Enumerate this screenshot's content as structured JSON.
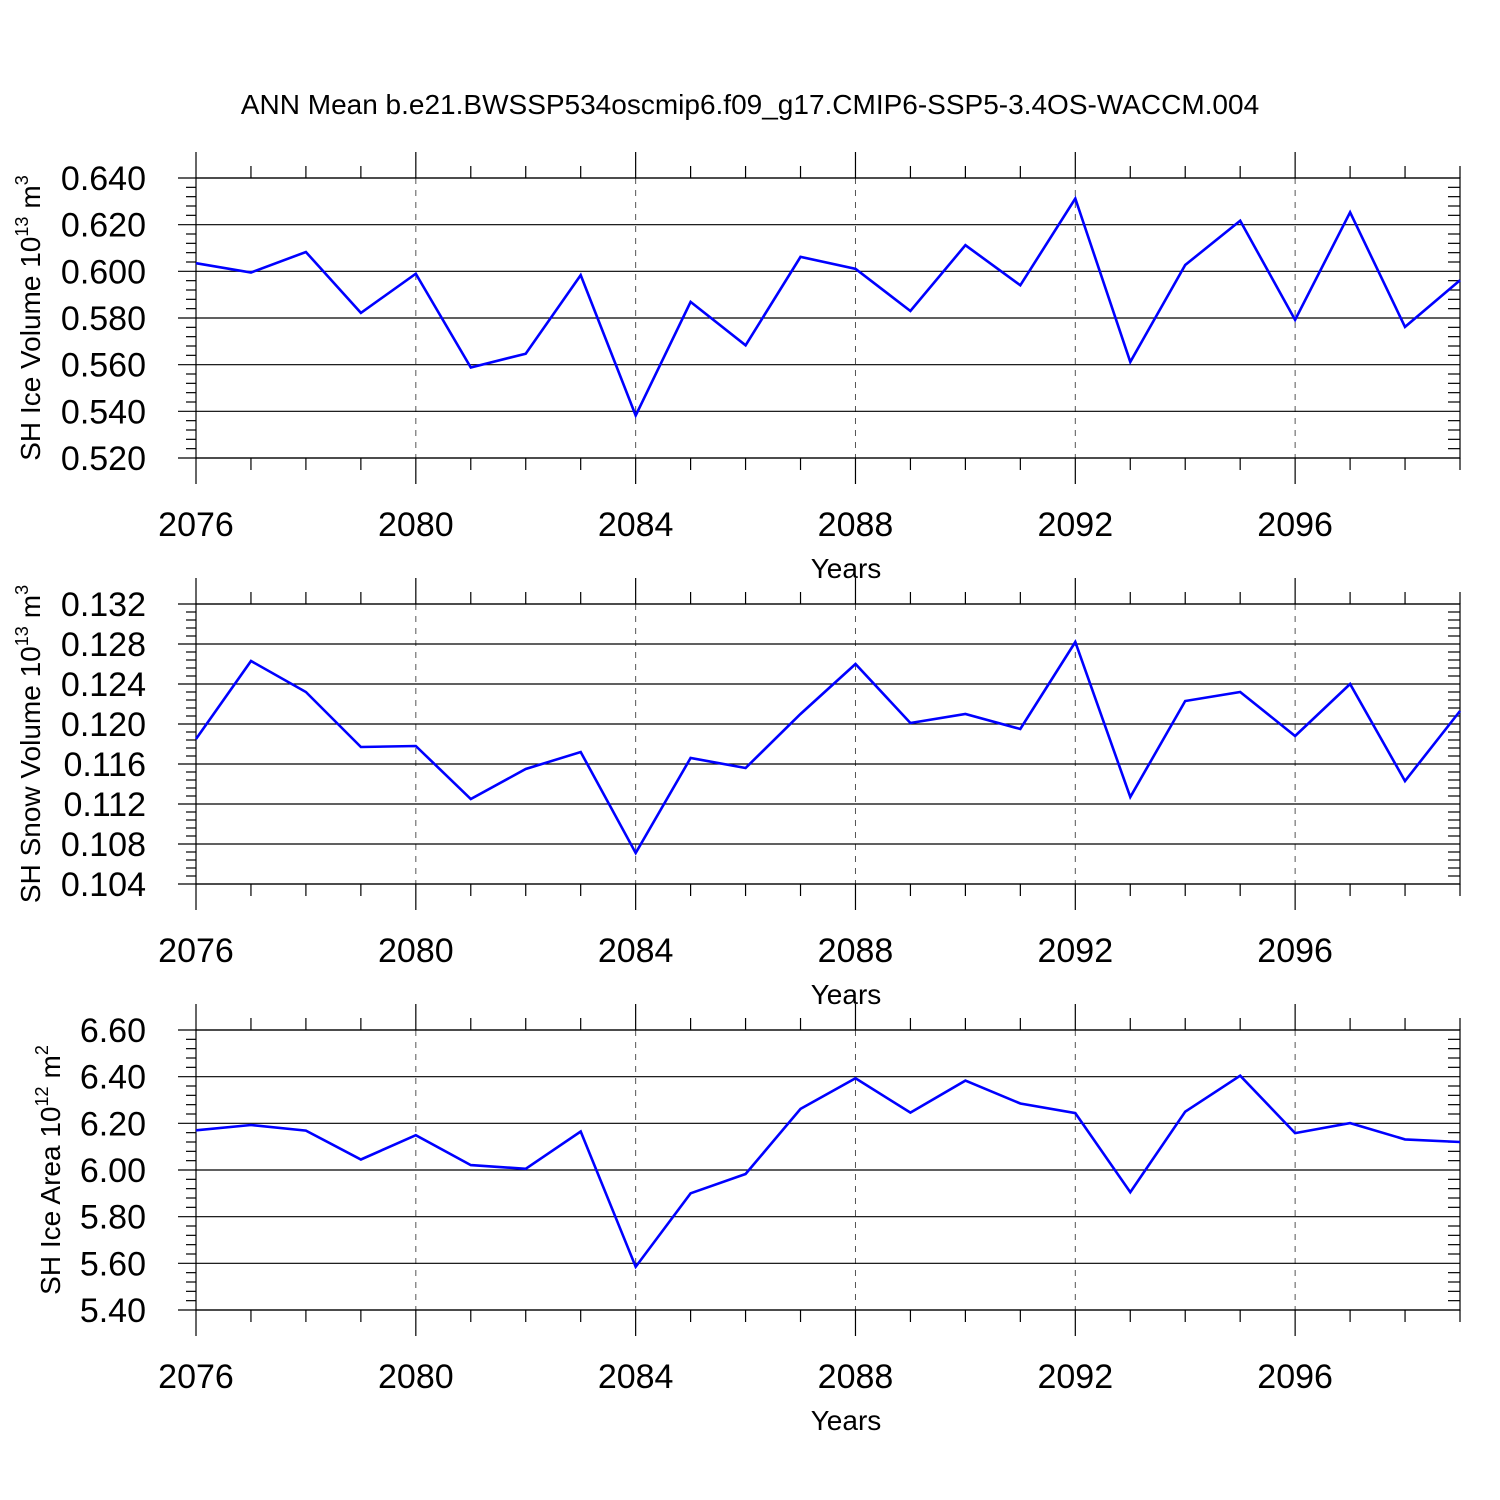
{
  "title": "ANN Mean b.e21.BWSSP534oscmip6.f09_g17.CMIP6-SSP5-3.4OS-WACCM.004",
  "line_color": "#0000ff",
  "chart_data": [
    {
      "type": "line",
      "ylabel_main": "SH Ice Volume 10",
      "ylabel_exp": "13",
      "ylabel_unit": "m",
      "ylabel_unit_exp": "3",
      "xlabel": "Years",
      "xlim": [
        2076,
        2099
      ],
      "ylim": [
        0.52,
        0.64
      ],
      "xticks": [
        "2076",
        "2080",
        "2084",
        "2088",
        "2092",
        "2096"
      ],
      "yticks": [
        "0.520",
        "0.540",
        "0.560",
        "0.580",
        "0.600",
        "0.620",
        "0.640"
      ],
      "grid": "x-dashed",
      "x": [
        2076,
        2077,
        2078,
        2079,
        2080,
        2081,
        2082,
        2083,
        2084,
        2085,
        2086,
        2087,
        2088,
        2089,
        2090,
        2091,
        2092,
        2093,
        2094,
        2095,
        2096,
        2097,
        2098,
        2099
      ],
      "values": [
        0.6035,
        0.5995,
        0.6083,
        0.5822,
        0.599,
        0.5588,
        0.5647,
        0.5984,
        0.5382,
        0.5869,
        0.5683,
        0.6062,
        0.6011,
        0.583,
        0.6112,
        0.594,
        0.6312,
        0.5612,
        0.6027,
        0.6217,
        0.5792,
        0.6253,
        0.5762,
        0.5962
      ]
    },
    {
      "type": "line",
      "ylabel_main": "SH Snow Volume 10",
      "ylabel_exp": "13",
      "ylabel_unit": "m",
      "ylabel_unit_exp": "3",
      "xlabel": "Years",
      "xlim": [
        2076,
        2099
      ],
      "ylim": [
        0.104,
        0.132
      ],
      "xticks": [
        "2076",
        "2080",
        "2084",
        "2088",
        "2092",
        "2096"
      ],
      "yticks": [
        "0.104",
        "0.108",
        "0.112",
        "0.116",
        "0.120",
        "0.124",
        "0.128",
        "0.132"
      ],
      "grid": "x-dashed",
      "x": [
        2076,
        2077,
        2078,
        2079,
        2080,
        2081,
        2082,
        2083,
        2084,
        2085,
        2086,
        2087,
        2088,
        2089,
        2090,
        2091,
        2092,
        2093,
        2094,
        2095,
        2096,
        2097,
        2098,
        2099
      ],
      "values": [
        0.1185,
        0.1263,
        0.1232,
        0.1177,
        0.1178,
        0.1125,
        0.1155,
        0.1172,
        0.1071,
        0.1166,
        0.1156,
        0.121,
        0.126,
        0.1201,
        0.121,
        0.1195,
        0.1282,
        0.1127,
        0.1223,
        0.1232,
        0.1188,
        0.124,
        0.1143,
        0.1213
      ]
    },
    {
      "type": "line",
      "ylabel_main": "SH Ice Area 10",
      "ylabel_exp": "12",
      "ylabel_unit": "m",
      "ylabel_unit_exp": "2",
      "xlabel": "Years",
      "xlim": [
        2076,
        2099
      ],
      "ylim": [
        5.4,
        6.6
      ],
      "xticks": [
        "2076",
        "2080",
        "2084",
        "2088",
        "2092",
        "2096"
      ],
      "yticks": [
        "5.40",
        "5.60",
        "5.80",
        "6.00",
        "6.20",
        "6.40",
        "6.60"
      ],
      "grid": "x-dashed",
      "x": [
        2076,
        2077,
        2078,
        2079,
        2080,
        2081,
        2082,
        2083,
        2084,
        2085,
        2086,
        2087,
        2088,
        2089,
        2090,
        2091,
        2092,
        2093,
        2094,
        2095,
        2096,
        2097,
        2098,
        2099
      ],
      "values": [
        6.17,
        6.193,
        6.169,
        6.045,
        6.149,
        6.021,
        6.005,
        6.165,
        5.585,
        5.9,
        5.983,
        6.262,
        6.393,
        6.246,
        6.383,
        6.285,
        6.244,
        5.905,
        6.25,
        6.404,
        6.158,
        6.201,
        6.131,
        6.12
      ]
    }
  ]
}
